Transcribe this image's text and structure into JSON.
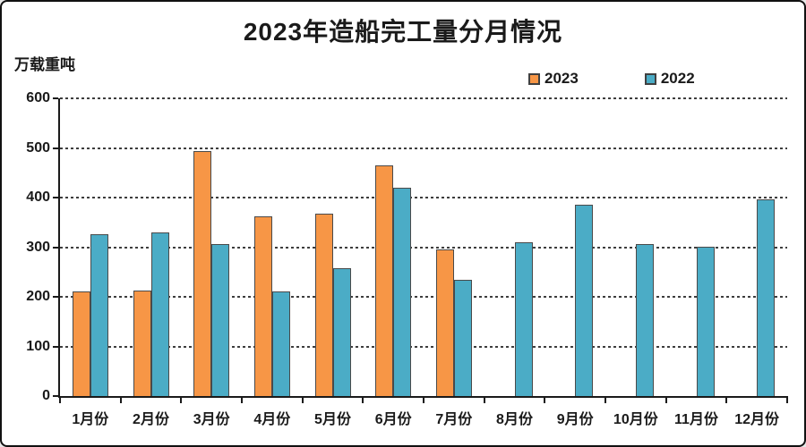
{
  "title": "2023年造船完工量分月情况",
  "y_axis_unit": "万载重吨",
  "legend": {
    "items": [
      {
        "label": "2023",
        "color": "#F79646"
      },
      {
        "label": "2022",
        "color": "#4BACC6"
      }
    ]
  },
  "chart_data": {
    "type": "bar",
    "title": "2023年造船完工量分月情况",
    "ylabel": "万载重吨",
    "categories": [
      "1月份",
      "2月份",
      "3月份",
      "4月份",
      "5月份",
      "6月份",
      "7月份",
      "8月份",
      "9月份",
      "10月份",
      "11月份",
      "12月份"
    ],
    "series": [
      {
        "name": "2023",
        "color": "#F79646",
        "values": [
          210,
          213,
          493,
          363,
          368,
          465,
          296,
          null,
          null,
          null,
          null,
          null
        ]
      },
      {
        "name": "2022",
        "color": "#4BACC6",
        "values": [
          326,
          329,
          306,
          211,
          257,
          420,
          234,
          310,
          386,
          306,
          301,
          396
        ]
      }
    ],
    "ylim": [
      0,
      600
    ],
    "ytick_interval": 100,
    "grid": "horizontal-dashed",
    "legend_position": "top-right",
    "bar_border_color": "#4a4a4a",
    "axis_color": "#1a1a1a"
  }
}
